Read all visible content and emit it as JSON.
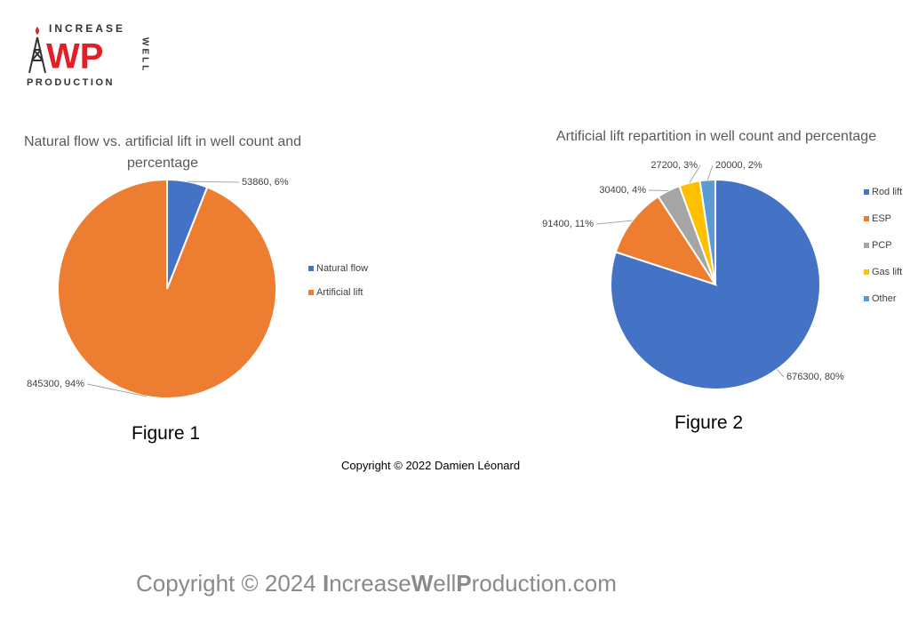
{
  "logo": {
    "top": "INCREASE",
    "side": "WELL",
    "bottom": "PRODUCTION",
    "mark": "WP"
  },
  "chart_data": [
    {
      "type": "pie",
      "title": "Natural flow vs. artificial lift in well count and percentage",
      "categories": [
        "Natural flow",
        "Artificial lift"
      ],
      "values": [
        53860,
        845300
      ],
      "value_labels": [
        "53860, 6%",
        "845300, 94%"
      ],
      "colors": [
        "#4472c4",
        "#ed7d31"
      ],
      "legend": "right",
      "caption": "Figure 1"
    },
    {
      "type": "pie",
      "title": "Artificial lift repartition in well count and percentage",
      "categories": [
        "Rod lift",
        "ESP",
        "PCP",
        "Gas lift",
        "Other"
      ],
      "values": [
        676300,
        91400,
        30400,
        27200,
        20000
      ],
      "value_labels": [
        "676300, 80%",
        "91400, 11%",
        "30400, 4%",
        "27200, 3%",
        "20000, 2%"
      ],
      "colors": [
        "#4472c4",
        "#ed7d31",
        "#a5a5a5",
        "#ffc000",
        "#5b9bd5"
      ],
      "legend": "right",
      "caption": "Figure 2"
    }
  ],
  "copyright": "Copyright © 2022 Damien Léonard",
  "footer": [
    "Copyright © 2024 ",
    "I",
    "ncrease",
    "W",
    "ell",
    "P",
    "roduction.com"
  ]
}
